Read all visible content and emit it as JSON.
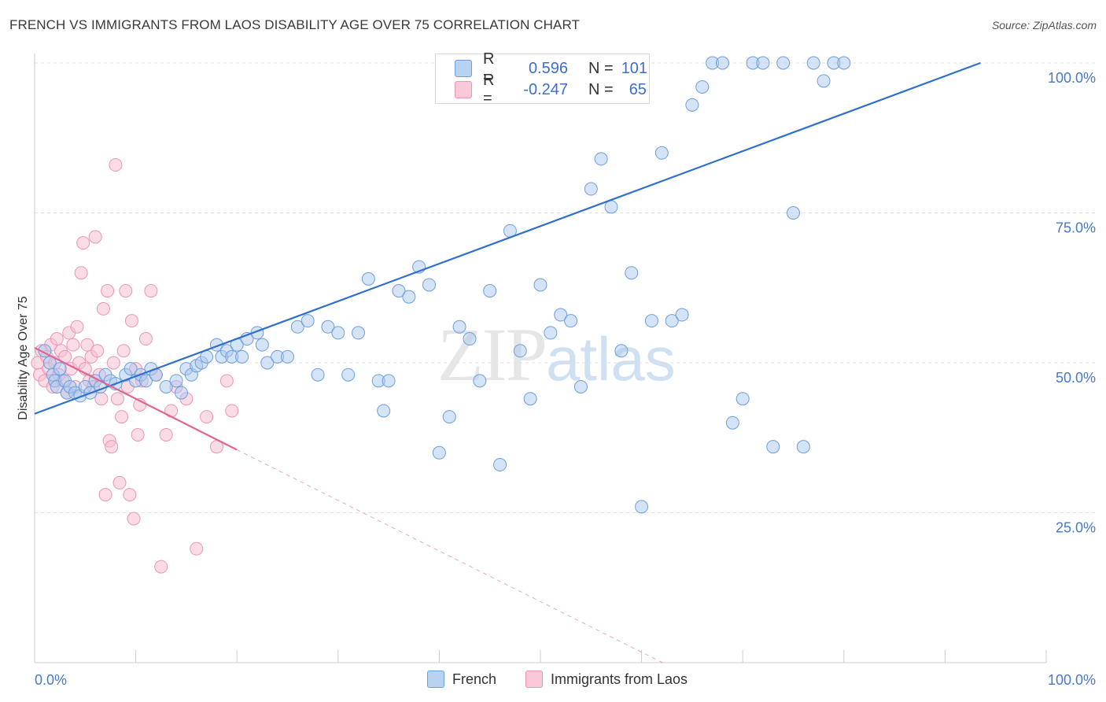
{
  "title": "FRENCH VS IMMIGRANTS FROM LAOS DISABILITY AGE OVER 75 CORRELATION CHART",
  "source": "Source: ZipAtlas.com",
  "watermark": {
    "zip": "ZIP",
    "atlas": "atlas"
  },
  "legend": {
    "r_label": "R =",
    "n_label": "N =",
    "french": {
      "r": "0.596",
      "n": "101"
    },
    "laos": {
      "r": "-0.247",
      "n": "65"
    }
  },
  "colors": {
    "french_fill": "#a9c8ee",
    "french_stroke": "#6d9ee0",
    "french_line": "#2f6fcf",
    "laos_fill": "#f6c0d2",
    "laos_stroke": "#ee95b3",
    "laos_line": "#e0668f",
    "grid": "#e2e2e2",
    "axis_label": "#4a78c9"
  },
  "chart_data": {
    "type": "scatter",
    "title": "FRENCH VS IMMIGRANTS FROM LAOS DISABILITY AGE OVER 75 CORRELATION CHART",
    "xlabel": "",
    "ylabel": "Disability Age Over 75",
    "x_tick_labels": [
      "0.0%",
      "100.0%"
    ],
    "y_tick_labels": [
      "25.0%",
      "50.0%",
      "75.0%",
      "100.0%"
    ],
    "xlim": [
      0,
      100
    ],
    "ylim": [
      0,
      102
    ],
    "grid": true,
    "legend_position": "top-center",
    "series": [
      {
        "name": "French",
        "trend": {
          "x": [
            0,
            93.5
          ],
          "y": [
            41.5,
            100
          ]
        },
        "points": [
          [
            1,
            52
          ],
          [
            1.5,
            50
          ],
          [
            1.8,
            48
          ],
          [
            2,
            47
          ],
          [
            2.2,
            46
          ],
          [
            2.5,
            49
          ],
          [
            3,
            47
          ],
          [
            3.2,
            45
          ],
          [
            3.5,
            46
          ],
          [
            4,
            45
          ],
          [
            4.5,
            44.5
          ],
          [
            5,
            46
          ],
          [
            5.5,
            45
          ],
          [
            6,
            47
          ],
          [
            6.5,
            46
          ],
          [
            7,
            48
          ],
          [
            7.5,
            47
          ],
          [
            8,
            46.5
          ],
          [
            9,
            48
          ],
          [
            9.5,
            49
          ],
          [
            10,
            47
          ],
          [
            10.5,
            48
          ],
          [
            11,
            47
          ],
          [
            11.5,
            49
          ],
          [
            12,
            48
          ],
          [
            13,
            46
          ],
          [
            14,
            47
          ],
          [
            14.5,
            45
          ],
          [
            15,
            49
          ],
          [
            15.5,
            48
          ],
          [
            16,
            49.5
          ],
          [
            16.5,
            50
          ],
          [
            17,
            51
          ],
          [
            18,
            53
          ],
          [
            18.5,
            51
          ],
          [
            19,
            52
          ],
          [
            19.5,
            51
          ],
          [
            20,
            53
          ],
          [
            20.5,
            51
          ],
          [
            21,
            54
          ],
          [
            22,
            55
          ],
          [
            22.5,
            53
          ],
          [
            23,
            50
          ],
          [
            24,
            51
          ],
          [
            25,
            51
          ],
          [
            26,
            56
          ],
          [
            27,
            57
          ],
          [
            28,
            48
          ],
          [
            29,
            56
          ],
          [
            30,
            55
          ],
          [
            31,
            48
          ],
          [
            32,
            55
          ],
          [
            33,
            64
          ],
          [
            34,
            47
          ],
          [
            34.5,
            42
          ],
          [
            35,
            47
          ],
          [
            36,
            62
          ],
          [
            37,
            61
          ],
          [
            38,
            66
          ],
          [
            39,
            63
          ],
          [
            40,
            35
          ],
          [
            41,
            41
          ],
          [
            42,
            56
          ],
          [
            43,
            54
          ],
          [
            44,
            47
          ],
          [
            45,
            62
          ],
          [
            46,
            33
          ],
          [
            47,
            72
          ],
          [
            48,
            52
          ],
          [
            49,
            44
          ],
          [
            50,
            63
          ],
          [
            51,
            55
          ],
          [
            52,
            58
          ],
          [
            53,
            57
          ],
          [
            54,
            46
          ],
          [
            55,
            79
          ],
          [
            56,
            84
          ],
          [
            57,
            76
          ],
          [
            58,
            52
          ],
          [
            59,
            65
          ],
          [
            60,
            26
          ],
          [
            61,
            57
          ],
          [
            62,
            85
          ],
          [
            63,
            57
          ],
          [
            64,
            58
          ],
          [
            65,
            93
          ],
          [
            66,
            96
          ],
          [
            67,
            100
          ],
          [
            68,
            100
          ],
          [
            69,
            40
          ],
          [
            70,
            44
          ],
          [
            71,
            100
          ],
          [
            72,
            100
          ],
          [
            73,
            36
          ],
          [
            74,
            100
          ],
          [
            75,
            75
          ],
          [
            76,
            36
          ],
          [
            77,
            100
          ],
          [
            78,
            97
          ],
          [
            79,
            100
          ],
          [
            80,
            100
          ]
        ]
      },
      {
        "name": "Immigrants from Laos",
        "trend": {
          "x": [
            0,
            20
          ],
          "y": [
            52.5,
            35.5
          ]
        },
        "trend_dashed": {
          "x": [
            20,
            100
          ],
          "y": [
            35.5,
            -32
          ]
        },
        "points": [
          [
            0.3,
            50
          ],
          [
            0.5,
            48
          ],
          [
            0.7,
            52
          ],
          [
            1,
            47
          ],
          [
            1.2,
            51
          ],
          [
            1.4,
            49
          ],
          [
            1.6,
            53
          ],
          [
            1.8,
            46
          ],
          [
            2,
            50
          ],
          [
            2.2,
            54
          ],
          [
            2.4,
            48
          ],
          [
            2.6,
            52
          ],
          [
            2.8,
            47
          ],
          [
            3,
            51
          ],
          [
            3.2,
            45
          ],
          [
            3.4,
            55
          ],
          [
            3.6,
            49
          ],
          [
            3.8,
            53
          ],
          [
            4,
            46
          ],
          [
            4.2,
            56
          ],
          [
            4.4,
            50
          ],
          [
            4.6,
            65
          ],
          [
            4.8,
            70
          ],
          [
            5,
            49
          ],
          [
            5.2,
            53
          ],
          [
            5.4,
            47
          ],
          [
            5.6,
            51
          ],
          [
            5.8,
            46
          ],
          [
            6,
            71
          ],
          [
            6.2,
            52
          ],
          [
            6.4,
            48
          ],
          [
            6.6,
            44
          ],
          [
            6.8,
            59
          ],
          [
            7,
            28
          ],
          [
            7.2,
            62
          ],
          [
            7.4,
            37
          ],
          [
            7.6,
            36
          ],
          [
            7.8,
            50
          ],
          [
            8,
            83
          ],
          [
            8.2,
            44
          ],
          [
            8.4,
            30
          ],
          [
            8.6,
            41
          ],
          [
            8.8,
            52
          ],
          [
            9,
            62
          ],
          [
            9.2,
            46
          ],
          [
            9.4,
            28
          ],
          [
            9.6,
            57
          ],
          [
            9.8,
            24
          ],
          [
            10,
            49
          ],
          [
            10.2,
            38
          ],
          [
            10.4,
            43
          ],
          [
            10.6,
            47
          ],
          [
            11,
            54
          ],
          [
            11.5,
            62
          ],
          [
            12,
            48
          ],
          [
            12.5,
            16
          ],
          [
            13,
            38
          ],
          [
            13.5,
            42
          ],
          [
            14,
            46
          ],
          [
            15,
            44
          ],
          [
            16,
            19
          ],
          [
            17,
            41
          ],
          [
            18,
            36
          ],
          [
            19,
            47
          ],
          [
            19.5,
            42
          ]
        ]
      }
    ]
  }
}
